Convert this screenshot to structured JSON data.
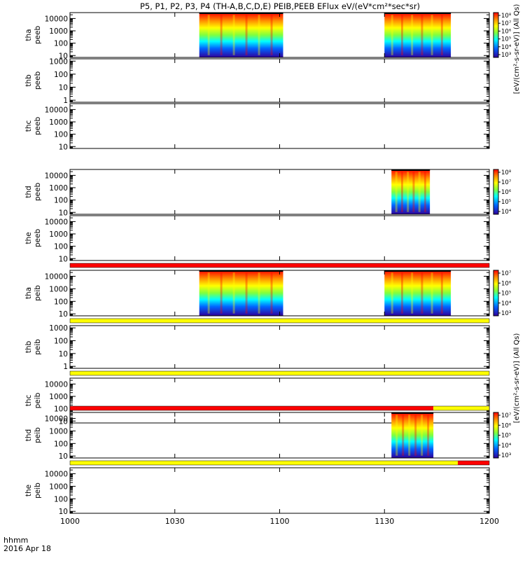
{
  "title": "P5, P1, P2, P3, P4 (TH-A,B,C,D,E) PEIB,PEEB EFlux eV/(eV*cm²*sec*sr)",
  "time_axis": {
    "label_line1": "hhmm",
    "label_line2": "2016 Apr 18",
    "ticks": [
      "1000",
      "1030",
      "1100",
      "1130",
      "1200"
    ],
    "tick_minutes": [
      600,
      630,
      660,
      690,
      720
    ],
    "range_minutes": [
      600,
      720
    ]
  },
  "colorbar_units": {
    "top": "[eV/(cm²-s-sr-eV)] (All Qs)",
    "bottom": "[eV/(cm²-s-sr-eV)] (All Qs)"
  },
  "colors": {
    "quality_red": "#ff0000",
    "quality_yellow": "#ffff00",
    "data_gap_black": "#000000"
  },
  "chart_data": [
    {
      "type": "heatmap",
      "probe_label": "tha",
      "instrument_label": "peeb",
      "yticks": [
        "10",
        "100",
        "1000",
        "10000"
      ],
      "yscale": "log",
      "ylim": [
        7,
        30000
      ],
      "intervals_minutes": [
        [
          637,
          661
        ],
        [
          690,
          709
        ]
      ],
      "colorbar": {
        "ticks": [
          "10³",
          "10⁴",
          "10⁵",
          "10⁶",
          "10⁷",
          "10⁸"
        ]
      }
    },
    {
      "type": "heatmap",
      "probe_label": "thb",
      "instrument_label": "peeb",
      "yticks": [
        "1",
        "10",
        "100",
        "1000"
      ],
      "yscale": "log",
      "ylim": [
        0.7,
        1500
      ],
      "intervals_minutes": []
    },
    {
      "type": "heatmap",
      "probe_label": "thc",
      "instrument_label": "peeb",
      "yticks": [
        "10",
        "100",
        "1000",
        "10000"
      ],
      "yscale": "log",
      "ylim": [
        7,
        30000
      ],
      "intervals_minutes": []
    },
    {
      "type": "heatmap",
      "probe_label": "thd",
      "instrument_label": "peeb",
      "yticks": [
        "10",
        "100",
        "1000",
        "10000"
      ],
      "yscale": "log",
      "ylim": [
        7,
        30000
      ],
      "intervals_minutes": [
        [
          692,
          703
        ]
      ],
      "colorbar": {
        "ticks": [
          "10⁴",
          "10⁵",
          "10⁶",
          "10⁷",
          "10⁸"
        ]
      }
    },
    {
      "type": "heatmap",
      "probe_label": "the",
      "instrument_label": "peeb",
      "yticks": [
        "10",
        "100",
        "1000",
        "10000"
      ],
      "yscale": "log",
      "ylim": [
        7,
        30000
      ],
      "intervals_minutes": []
    },
    {
      "type": "heatmap",
      "probe_label": "tha",
      "instrument_label": "peib",
      "yticks": [
        "10",
        "100",
        "1000",
        "10000"
      ],
      "yscale": "log",
      "ylim": [
        7,
        30000
      ],
      "intervals_minutes": [
        [
          637,
          661
        ],
        [
          690,
          709
        ]
      ],
      "colorbar": {
        "ticks": [
          "10³",
          "10⁴",
          "10⁵",
          "10⁶",
          "10⁷"
        ]
      }
    },
    {
      "type": "heatmap",
      "probe_label": "thb",
      "instrument_label": "peib",
      "yticks": [
        "1",
        "10",
        "100",
        "1000"
      ],
      "yscale": "log",
      "ylim": [
        0.7,
        1500
      ],
      "intervals_minutes": []
    },
    {
      "type": "heatmap",
      "probe_label": "thc",
      "instrument_label": "peib",
      "yticks": [
        "10",
        "100",
        "1000",
        "10000"
      ],
      "yscale": "log",
      "ylim": [
        7,
        30000
      ],
      "intervals_minutes": []
    },
    {
      "type": "heatmap",
      "probe_label": "thd",
      "instrument_label": "peib",
      "yticks": [
        "10",
        "100",
        "1000",
        "10000"
      ],
      "yscale": "log",
      "ylim": [
        7,
        30000
      ],
      "intervals_minutes": [
        [
          692,
          704
        ]
      ],
      "colorbar": {
        "ticks": [
          "10³",
          "10⁴",
          "10⁵",
          "10⁶",
          "10⁷"
        ]
      }
    },
    {
      "type": "heatmap",
      "probe_label": "the",
      "instrument_label": "peib",
      "yticks": [
        "10",
        "100",
        "1000",
        "10000"
      ],
      "yscale": "log",
      "ylim": [
        7,
        30000
      ],
      "intervals_minutes": []
    }
  ],
  "quality_bars": [
    {
      "between": "the peeb / tha peib",
      "segments": [
        {
          "from": 600,
          "to": 720,
          "color": "red"
        }
      ]
    },
    {
      "between": "tha peib / thb peib",
      "segments": [
        {
          "from": 600,
          "to": 720,
          "color": "yellow"
        }
      ]
    },
    {
      "between": "thb peib / thc peib",
      "segments": [
        {
          "from": 600,
          "to": 720,
          "color": "yellow"
        }
      ]
    },
    {
      "between": "thc peib / thd peib",
      "segments": [
        {
          "from": 600,
          "to": 704,
          "color": "red"
        },
        {
          "from": 704,
          "to": 720,
          "color": "yellow"
        }
      ]
    },
    {
      "between": "thd peib / the peib",
      "segments": [
        {
          "from": 600,
          "to": 711,
          "color": "yellow"
        },
        {
          "from": 711,
          "to": 720,
          "color": "red"
        }
      ]
    }
  ]
}
